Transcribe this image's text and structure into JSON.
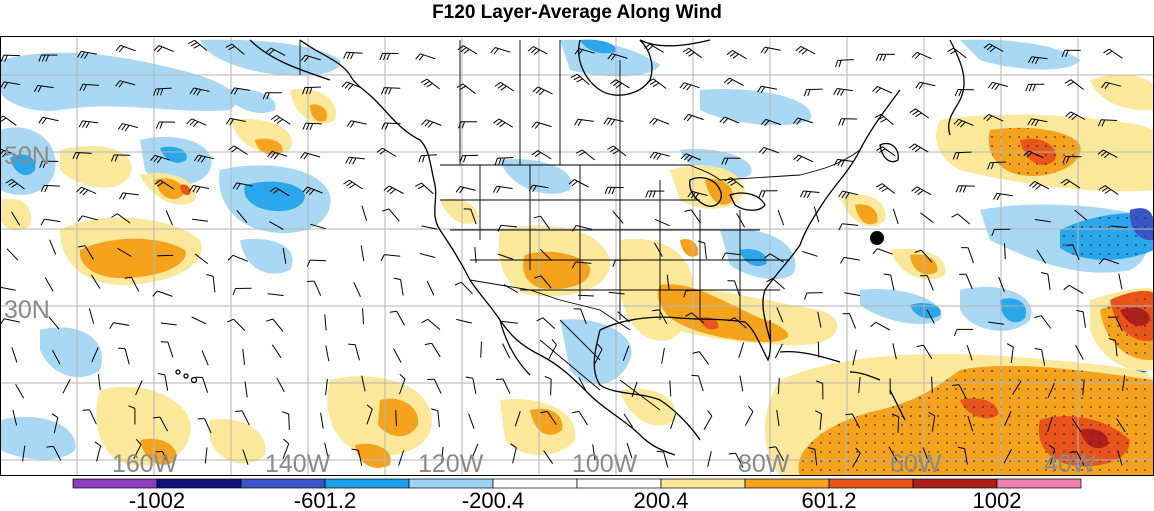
{
  "title": "F120 Layer-Average Along Wind",
  "map": {
    "lon_labels": [
      "160W",
      "140W",
      "120W",
      "100W",
      "80W",
      "60W",
      "40W"
    ],
    "lat_labels": [
      "50N",
      "30N"
    ]
  },
  "colorbar": {
    "colors": [
      "#8b3fc0",
      "#10107a",
      "#3a55c8",
      "#1aa0e8",
      "#9cd3f5",
      "#ffffff",
      "#ffffff",
      "#fbe79a",
      "#f5a21c",
      "#e8541a",
      "#b0201a",
      "#f07fae"
    ],
    "labels": [
      "-1002",
      "-601.2",
      "-200.4",
      "200.4",
      "601.2",
      "1002"
    ]
  },
  "legend_colors": {
    "light_blue": "#a9d8f5",
    "mid_blue": "#2aa6ea",
    "dark_blue": "#3a55c8",
    "light_yellow": "#fbe89a",
    "orange": "#f5a21c",
    "red_orange": "#e8541a",
    "dark_red": "#b0201a"
  }
}
